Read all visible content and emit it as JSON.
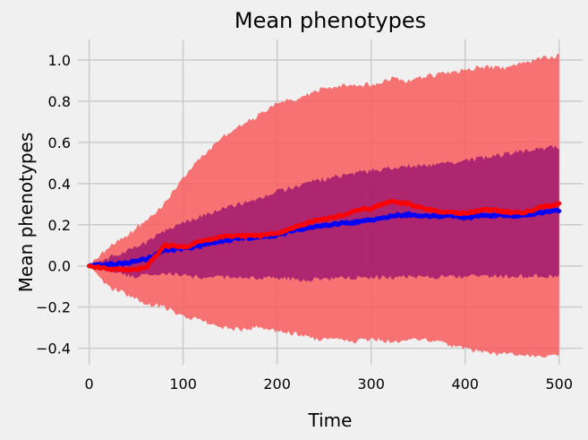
{
  "chart_data": {
    "type": "line",
    "title": "Mean phenotypes",
    "xlabel": "Time",
    "ylabel": "Mean phenotypes",
    "xlim": [
      -12,
      525
    ],
    "ylim": [
      -0.48,
      1.1
    ],
    "xticks": [
      0,
      100,
      200,
      300,
      400,
      500
    ],
    "yticks": [
      -0.4,
      -0.2,
      0.0,
      0.2,
      0.4,
      0.6,
      0.8,
      1.0
    ],
    "xtick_labels": [
      "0",
      "100",
      "200",
      "300",
      "400",
      "500"
    ],
    "ytick_labels": [
      "−0.4",
      "−0.2",
      "0.0",
      "0.2",
      "0.4",
      "0.6",
      "0.8",
      "1.0"
    ],
    "grid": true,
    "legend": "none",
    "x": [
      0,
      20,
      40,
      60,
      80,
      100,
      120,
      140,
      160,
      180,
      200,
      220,
      240,
      260,
      280,
      300,
      320,
      340,
      360,
      380,
      400,
      420,
      440,
      460,
      480,
      500
    ],
    "series": [
      {
        "color": "#0000ff",
        "values": [
          0.0,
          0.005,
          0.015,
          0.03,
          0.075,
          0.085,
          0.1,
          0.12,
          0.135,
          0.14,
          0.15,
          0.175,
          0.19,
          0.205,
          0.21,
          0.225,
          0.24,
          0.25,
          0.24,
          0.245,
          0.235,
          0.245,
          0.245,
          0.245,
          0.26,
          0.27
        ],
        "band_upper": [
          0.0,
          0.04,
          0.07,
          0.11,
          0.17,
          0.21,
          0.245,
          0.275,
          0.3,
          0.33,
          0.36,
          0.385,
          0.41,
          0.43,
          0.45,
          0.46,
          0.475,
          0.485,
          0.49,
          0.495,
          0.51,
          0.525,
          0.54,
          0.555,
          0.57,
          0.58
        ],
        "band_lower": [
          0.0,
          -0.025,
          -0.045,
          -0.05,
          -0.035,
          -0.05,
          -0.055,
          -0.055,
          -0.06,
          -0.06,
          -0.06,
          -0.065,
          -0.065,
          -0.06,
          -0.06,
          -0.055,
          -0.055,
          -0.055,
          -0.055,
          -0.055,
          -0.05,
          -0.05,
          -0.05,
          -0.05,
          -0.05,
          -0.05
        ],
        "band_color": "#a0196e"
      },
      {
        "color": "#ff0000",
        "values": [
          0.0,
          -0.015,
          -0.02,
          -0.01,
          0.1,
          0.09,
          0.12,
          0.14,
          0.145,
          0.145,
          0.155,
          0.19,
          0.22,
          0.235,
          0.265,
          0.28,
          0.315,
          0.3,
          0.275,
          0.26,
          0.255,
          0.275,
          0.265,
          0.255,
          0.285,
          0.3
        ],
        "band_upper": [
          0.0,
          0.09,
          0.15,
          0.22,
          0.3,
          0.43,
          0.53,
          0.62,
          0.68,
          0.73,
          0.79,
          0.81,
          0.85,
          0.87,
          0.88,
          0.88,
          0.91,
          0.9,
          0.92,
          0.94,
          0.95,
          0.97,
          0.96,
          0.98,
          1.01,
          1.02
        ],
        "band_lower": [
          0.0,
          -0.1,
          -0.14,
          -0.18,
          -0.2,
          -0.24,
          -0.27,
          -0.3,
          -0.31,
          -0.3,
          -0.32,
          -0.33,
          -0.36,
          -0.35,
          -0.37,
          -0.35,
          -0.37,
          -0.36,
          -0.36,
          -0.38,
          -0.4,
          -0.42,
          -0.43,
          -0.43,
          -0.44,
          -0.43
        ],
        "band_color": "#f85d5d"
      }
    ]
  }
}
